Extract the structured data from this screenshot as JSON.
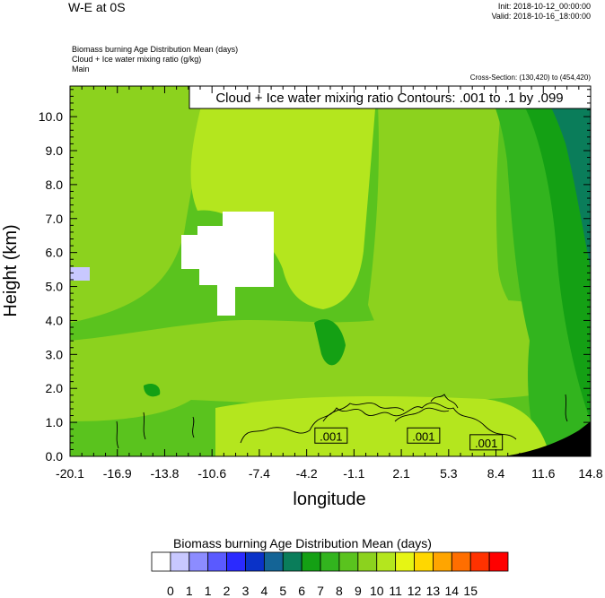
{
  "header": {
    "title": "W-E at 0S",
    "init": "Init: 2018-10-12_00:00:00",
    "valid": "Valid: 2018-10-16_18:00:00",
    "field1": "Biomass burning Age Distribution Mean    (days)",
    "field2": "Cloud + Ice water mixing ratio    (g/kg)",
    "field3": "Main",
    "cross_section": "Cross-Section: (130,420) to (454,420)"
  },
  "colors": {
    "levels": [
      "#ffffff",
      "#c8c8ff",
      "#8c8cff",
      "#5a5aff",
      "#2a2aff",
      "#0a32c8",
      "#146496",
      "#0a7d5a",
      "#14a014",
      "#32b41e",
      "#5ac31e",
      "#8cd21e",
      "#b4e61e",
      "#e6f514",
      "#ffd700",
      "#ffa500",
      "#ff6e00",
      "#ff3200",
      "#ff0000"
    ]
  },
  "chart_data": {
    "type": "heatmap",
    "title": "Cloud + Ice water mixing ratio Contours: .001 to .1 by .099",
    "xlabel": "longitude",
    "ylabel": "Height (km)",
    "xlim": [
      -20.1,
      14.8
    ],
    "ylim": [
      0.0,
      10.9
    ],
    "x_tick_labels": [
      "-20.1",
      "-16.9",
      "-13.8",
      "-10.6",
      "-7.4",
      "-4.2",
      "-1.1",
      "2.1",
      "5.3",
      "8.4",
      "11.6",
      "14.8"
    ],
    "y_ticks": [
      0,
      1,
      2,
      3,
      4,
      5,
      6,
      7,
      8,
      9,
      10
    ],
    "y_tick_labels": [
      "0.0",
      "1.0",
      "2.0",
      "3.0",
      "4.0",
      "5.0",
      "6.0",
      "7.0",
      "8.0",
      "9.0",
      "10.0"
    ],
    "contour_labels": [
      {
        "text": ".001",
        "x": -2.6,
        "y": 0.6
      },
      {
        "text": ".001",
        "x": 3.6,
        "y": 0.6
      },
      {
        "text": ".001",
        "x": 7.8,
        "y": 0.4
      }
    ],
    "colorbar": {
      "title": "Biomass burning Age Distribution Mean  (days)",
      "labels": [
        "0",
        "1",
        "1",
        "2",
        "3",
        "4",
        "5",
        "6",
        "7",
        "8",
        "9",
        "10",
        "11",
        "12",
        "13",
        "14",
        "15"
      ]
    }
  }
}
